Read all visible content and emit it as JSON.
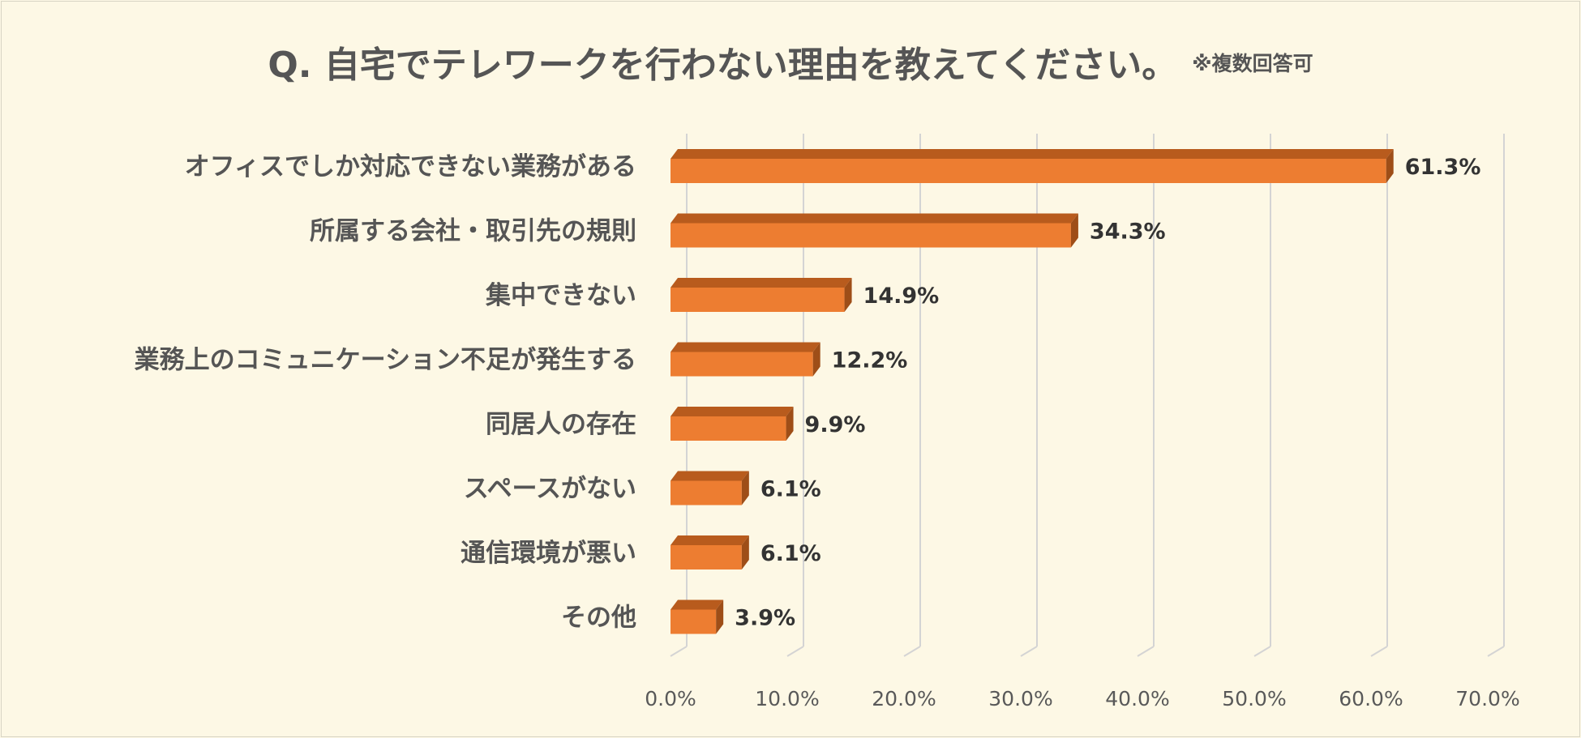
{
  "title": "Q. 自宅でテレワークを行わない理由を教えてください。",
  "title_note": "※複数回答可",
  "chart_data": {
    "type": "bar",
    "orientation": "horizontal",
    "style": "3d",
    "categories": [
      "オフィスでしか対応できない業務がある",
      "所属する会社・取引先の規則",
      "集中できない",
      "業務上のコミュニケーション不足が発生する",
      "同居人の存在",
      "スペースがない",
      "通信環境が悪い",
      "その他"
    ],
    "values": [
      61.3,
      34.3,
      14.9,
      12.2,
      9.9,
      6.1,
      6.1,
      3.9
    ],
    "value_labels": [
      "61.3%",
      "34.3%",
      "14.9%",
      "12.2%",
      "9.9%",
      "6.1%",
      "6.1%",
      "3.9%"
    ],
    "xlim": [
      0,
      70
    ],
    "xticks": [
      "0.0%",
      "10.0%",
      "20.0%",
      "30.0%",
      "40.0%",
      "50.0%",
      "60.0%",
      "70.0%"
    ],
    "grid": true,
    "legend": "none",
    "colors": {
      "bar_front": "#ed7d31",
      "bar_top": "#b85b1d",
      "bar_side": "#9e4e18",
      "grid": "#d4d4d4",
      "background": "#fdf8e5"
    }
  }
}
